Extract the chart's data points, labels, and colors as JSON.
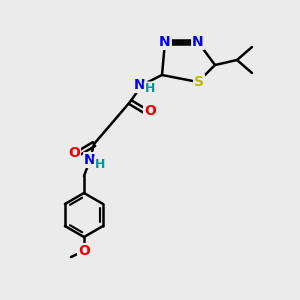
{
  "bg_color": "#ebebeb",
  "atom_colors": {
    "C": "#000000",
    "N": "#0000ee",
    "O": "#ee0000",
    "S": "#bbbb00",
    "H": "#009999"
  },
  "bond_color": "#000000",
  "bond_width": 1.8,
  "font_size": 10,
  "fig_size": [
    3.0,
    3.0
  ],
  "dpi": 100
}
